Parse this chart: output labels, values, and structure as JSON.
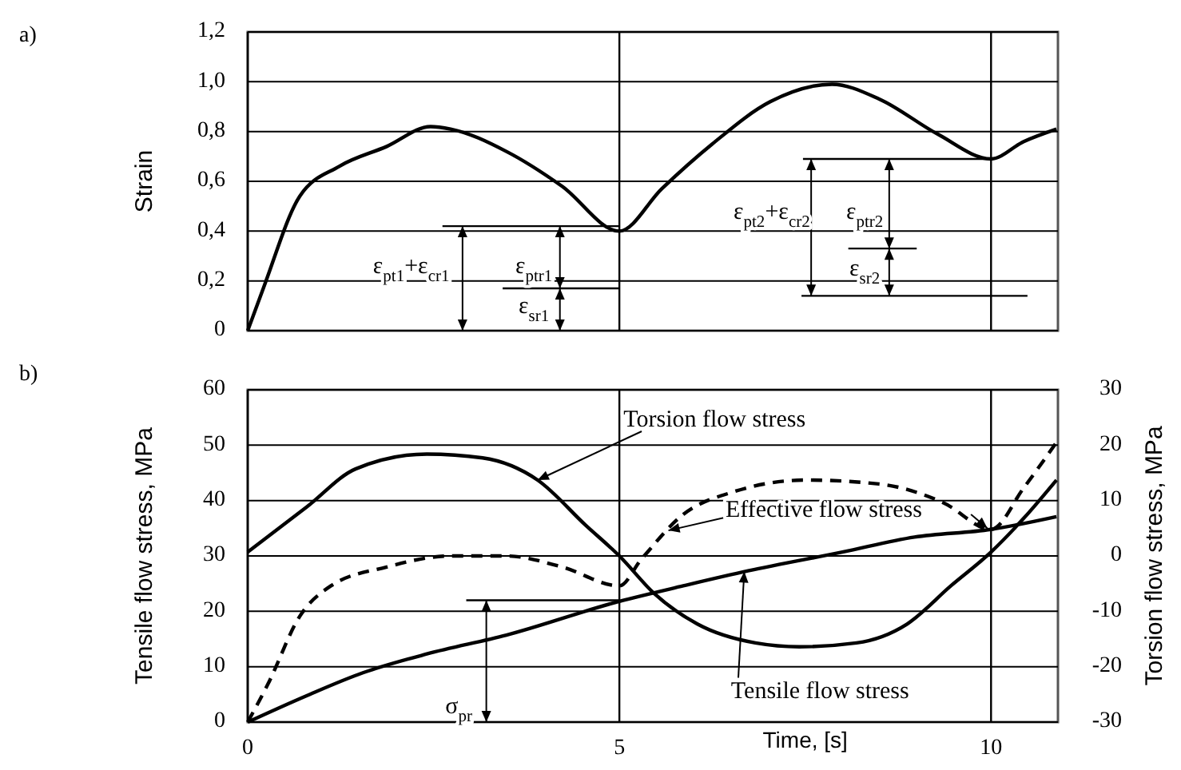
{
  "chart_data": [
    {
      "type": "line",
      "ylabel": "Strain",
      "xlim": [
        0,
        10.9
      ],
      "xticks": [
        0,
        5,
        10
      ],
      "ylim": [
        0,
        1.2
      ],
      "yticks": [
        {
          "value": 0,
          "label": "0"
        },
        {
          "value": 0.2,
          "label": "0,2"
        },
        {
          "value": 0.4,
          "label": "0,4"
        },
        {
          "value": 0.6,
          "label": "0,6"
        },
        {
          "value": 0.8,
          "label": "0,8"
        },
        {
          "value": 1,
          "label": "1,0"
        },
        {
          "value": 1.2,
          "label": "1,2"
        }
      ],
      "grid": true,
      "tick_labels": "y",
      "series": [
        {
          "color": "#000000",
          "x": [
            0,
            0.21,
            0.7,
            1.23,
            1.87,
            2.46,
            2.73,
            3.48,
            4.23,
            5,
            5.57,
            6.25,
            7.03,
            7.86,
            8.5,
            9.28,
            10,
            10.44,
            10.88
          ],
          "values": [
            0,
            0.17,
            0.54,
            0.66,
            0.74,
            0.82,
            0.81,
            0.72,
            0.58,
            0.4,
            0.57,
            0.75,
            0.92,
            0.99,
            0.93,
            0.79,
            0.69,
            0.76,
            0.81
          ]
        }
      ],
      "annotations": [
        "a)",
        "ε$_{pt1}$+ε$_{cr1}$",
        "ε$_{ptr1}$",
        "ε$_{sr1}$",
        "ε$_{pt2}$+ε$_{cr2}$",
        "ε$_{ptr2}$",
        "ε$_{sr2}$"
      ]
    },
    {
      "type": "line",
      "xlabel": "Time, [s]",
      "ylabel": "Tensile flow stress, MPa",
      "y2label": "Torsion flow stress, MPa",
      "xlim": [
        0,
        10.9
      ],
      "xticks": [
        0,
        5,
        10
      ],
      "ylim": [
        0,
        60
      ],
      "yticks": [
        0,
        10,
        20,
        30,
        40,
        50,
        60
      ],
      "y2lim": [
        -30,
        30
      ],
      "y2ticks": [
        -30,
        -20,
        -10,
        0,
        10,
        20,
        30
      ],
      "grid": true,
      "series": [
        {
          "color": "#000000",
          "x": [
            0,
            0.8,
            1.55,
            2.41,
            3.48,
            5,
            5.86,
            6.73,
            8,
            8.97,
            10,
            10.88
          ],
          "values": [
            0,
            4.8,
            8.9,
            12.3,
            15.7,
            21.8,
            24.6,
            27.3,
            30.7,
            33.4,
            34.8,
            37.1
          ]
        },
        {
          "color": "#000000",
          "axis": "y2",
          "x": [
            0,
            0.8,
            1.45,
            2.41,
            3.16,
            3.9,
            4.55,
            5,
            5.47,
            6.05,
            6.83,
            7.42,
            8.19,
            8.87,
            9.46,
            10,
            10.44,
            10.88
          ],
          "values": [
            0.7,
            8.9,
            15.7,
            18.4,
            17.7,
            13.7,
            5.5,
            0,
            -6.8,
            -12.3,
            -15.7,
            -16.4,
            -15.7,
            -12.3,
            -5.4,
            0.7,
            6.8,
            13.7
          ]
        },
        {
          "color": "#000000",
          "line_style": "dashed",
          "x": [
            0,
            0.27,
            0.7,
            1.12,
            1.87,
            2.73,
            3.48,
            4.23,
            5,
            5.29,
            5.86,
            6.54,
            7.51,
            8.49,
            9.36,
            10,
            10.44,
            10.88
          ],
          "values": [
            0,
            6.8,
            19.1,
            24.6,
            28,
            30,
            30,
            28,
            24.6,
            29.3,
            37.5,
            41.6,
            43.7,
            43,
            39.6,
            34.8,
            42.3,
            50.5
          ]
        }
      ],
      "annotations": [
        "b)",
        {
          "text": "Torsion flow stress",
          "x": 3.9,
          "y": 43.7
        },
        {
          "text": "Effective flow stress",
          "x": 5.66,
          "y": 34.6
        },
        {
          "text": "Tensile flow stress",
          "x": 6.68,
          "y": 27.2
        },
        "σ$_{pr}$"
      ]
    }
  ]
}
